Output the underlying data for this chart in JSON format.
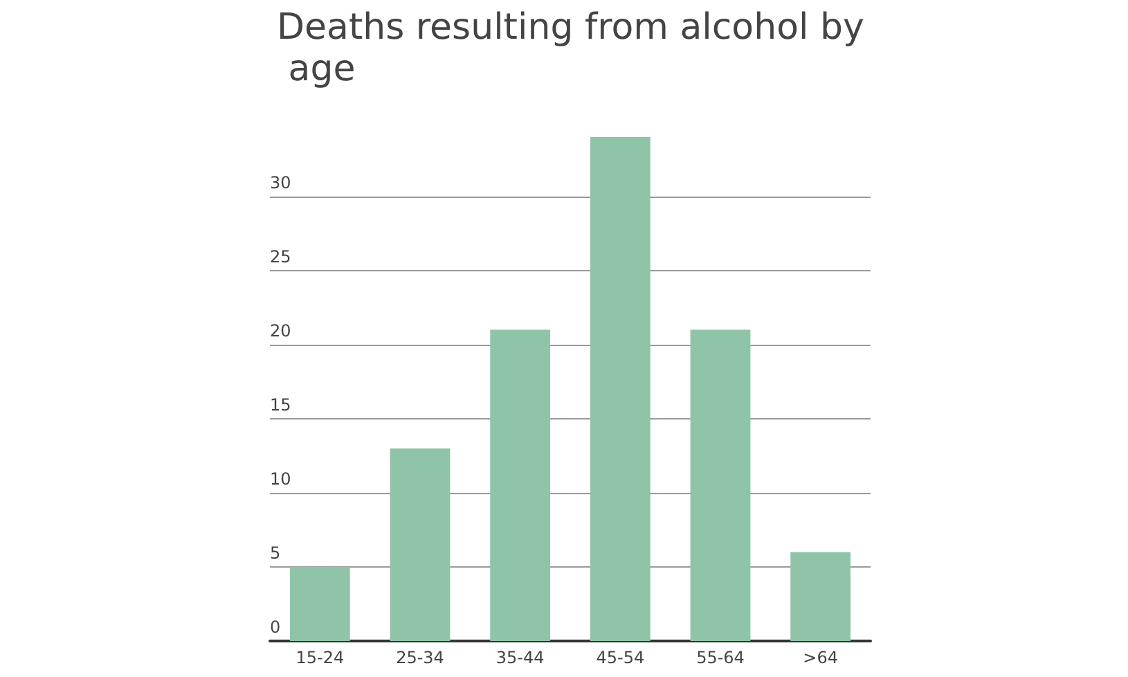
{
  "chart_data": {
    "type": "bar",
    "title": "Deaths resulting from alcohol by age",
    "categories": [
      "15-24",
      "25-34",
      "35-44",
      "45-54",
      "55-64",
      ">64"
    ],
    "values": [
      5,
      13,
      21,
      34,
      21,
      6
    ],
    "color": "#8fc4a8",
    "ylim": [
      0,
      34
    ],
    "yticks": [
      0,
      5,
      10,
      15,
      20,
      25,
      30
    ],
    "grid": "y"
  }
}
